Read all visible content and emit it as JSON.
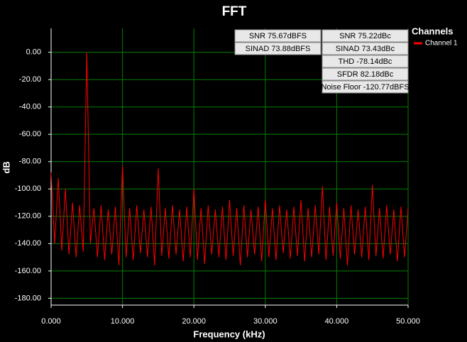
{
  "chart_data": {
    "type": "line",
    "title": "FFT",
    "x_label": "Frequency (kHz)",
    "y_label": "dB",
    "x": [
      0,
      0.5,
      1,
      1.5,
      2,
      2.5,
      3,
      3.5,
      4,
      4.5,
      5,
      5.5,
      6,
      6.5,
      7,
      7.5,
      8,
      8.5,
      9,
      9.5,
      10,
      10.5,
      11,
      11.5,
      12,
      12.5,
      13,
      13.5,
      14,
      14.5,
      15,
      15.5,
      16,
      16.5,
      17,
      17.5,
      18,
      18.5,
      19,
      19.5,
      20,
      20.5,
      21,
      21.5,
      22,
      22.5,
      23,
      23.5,
      24,
      24.5,
      25,
      25.5,
      26,
      26.5,
      27,
      27.5,
      28,
      28.5,
      29,
      29.5,
      30,
      30.5,
      31,
      31.5,
      32,
      32.5,
      33,
      33.5,
      34,
      34.5,
      35,
      35.5,
      36,
      36.5,
      37,
      37.5,
      38,
      38.5,
      39,
      39.5,
      40,
      40.5,
      41,
      41.5,
      42,
      42.5,
      43,
      43.5,
      44,
      44.5,
      45,
      45.5,
      46,
      46.5,
      47,
      47.5,
      48,
      48.5,
      49,
      49.5,
      50
    ],
    "series": [
      {
        "name": "Channel 1",
        "color": "#ff0000",
        "values": [
          -88,
          -140,
          -92,
          -145,
          -100,
          -148,
          -110,
          -150,
          -112,
          -146,
          0,
          -140,
          -114,
          -150,
          -112,
          -152,
          -115,
          -148,
          -113,
          -156,
          -83,
          -150,
          -114,
          -152,
          -112,
          -147,
          -115,
          -150,
          -113,
          -156,
          -85,
          -149,
          -114,
          -151,
          -112,
          -148,
          -115,
          -153,
          -113,
          -150,
          -100,
          -152,
          -114,
          -155,
          -112,
          -148,
          -115,
          -150,
          -113,
          -152,
          -108,
          -149,
          -114,
          -156,
          -112,
          -150,
          -115,
          -148,
          -113,
          -153,
          -108,
          -150,
          -114,
          -152,
          -112,
          -147,
          -115,
          -151,
          -113,
          -149,
          -108,
          -153,
          -114,
          -150,
          -112,
          -148,
          -98,
          -152,
          -113,
          -149,
          -110,
          -151,
          -114,
          -156,
          -112,
          -148,
          -115,
          -150,
          -113,
          -152,
          -97,
          -149,
          -114,
          -151,
          -112,
          -148,
          -115,
          -153,
          -113,
          -150,
          -114
        ]
      }
    ],
    "xlim": [
      0,
      50
    ],
    "ylim": [
      -185,
      17.5
    ],
    "xticks": [
      {
        "value": 0,
        "label": "0.000"
      },
      {
        "value": 10,
        "label": "10.000"
      },
      {
        "value": 20,
        "label": "20.000"
      },
      {
        "value": 30,
        "label": "30.000"
      },
      {
        "value": 40,
        "label": "40.000"
      },
      {
        "value": 50,
        "label": "50.000"
      }
    ],
    "yticks": [
      {
        "value": 0,
        "label": "0.00"
      },
      {
        "value": -20,
        "label": "-20.00"
      },
      {
        "value": -40,
        "label": "-40.00"
      },
      {
        "value": -60,
        "label": "-60.00"
      },
      {
        "value": -80,
        "label": "-80.00"
      },
      {
        "value": -100,
        "label": "-100.00"
      },
      {
        "value": -120,
        "label": "-120.00"
      },
      {
        "value": -140,
        "label": "-140.00"
      },
      {
        "value": -160,
        "label": "-160.00"
      },
      {
        "value": -180,
        "label": "-180.00"
      }
    ],
    "grid": true,
    "grid_color": "#008000",
    "legend_title": "Channels",
    "annotations": [
      [
        "SNR 75.67dBFS",
        "SINAD 73.88dBFS"
      ],
      [
        "SNR 75.22dBc",
        "SINAD 73.43dBc",
        "THD -78.14dBc",
        "SFDR 82.18dBc",
        "Noise Floor -120.77dBFS"
      ]
    ]
  }
}
